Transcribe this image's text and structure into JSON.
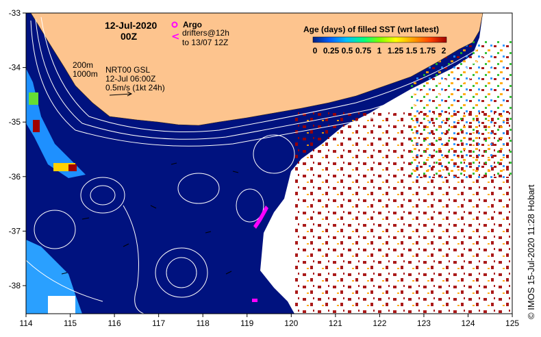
{
  "title": {
    "date": "12-Jul-2020",
    "hour": "00Z"
  },
  "argo": {
    "label": "Argo",
    "drifters_line1": "drifters@12h",
    "drifters_line2": "to 13/07 12Z",
    "marker_color": "#ff00ff"
  },
  "contours": {
    "line1": "200m",
    "line2": "1000m"
  },
  "product": {
    "line1": "NRT00 GSL",
    "line2": "12-Jul 06:00Z",
    "line3": "0.5m/s (1kt 24h)"
  },
  "legend": {
    "title": "Age (days) of filled SST (wrt latest)",
    "ticks": [
      "0",
      "0.25",
      "0.5",
      "0.75",
      "1",
      "1.25",
      "1.5",
      "1.75",
      "2"
    ],
    "gradient": [
      "#002080",
      "#0060ff",
      "#00c0ff",
      "#00ff80",
      "#80ff00",
      "#ffff00",
      "#ffa000",
      "#ff4000",
      "#a00000"
    ]
  },
  "axes": {
    "x_ticks": [
      "114",
      "115",
      "116",
      "117",
      "118",
      "119",
      "120",
      "121",
      "122",
      "123",
      "124",
      "125"
    ],
    "y_ticks": [
      "-33",
      "-34",
      "-35",
      "-36",
      "-37",
      "-38"
    ]
  },
  "credit": "© IMOS 15-Jul-2020 11:28 Hobart",
  "colors": {
    "land": "#fdc48e",
    "ocean": "#00127f",
    "cloud": "#ffffff",
    "age_old": "#a00000",
    "age_mid": "#ffa500",
    "age_new": "#22bb22",
    "coastal": "#1e90ff"
  }
}
